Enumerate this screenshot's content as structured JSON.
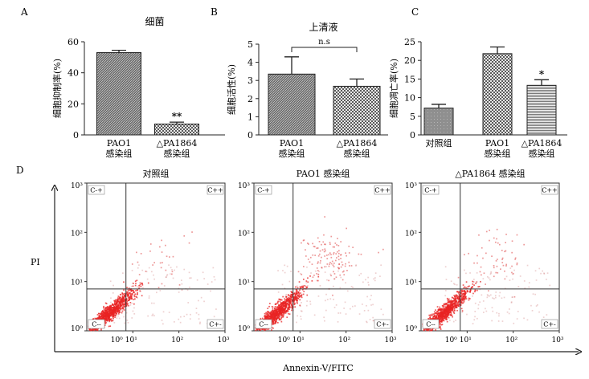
{
  "chart_data": [
    {
      "id": "A",
      "type": "bar",
      "panel_label": "A",
      "title": "细菌",
      "ylabel": "细胞抑制率(%)",
      "ylim": [
        0,
        60
      ],
      "yticks": [
        0,
        20,
        40,
        60
      ],
      "categories": [
        [
          "PAO1",
          "感染组"
        ],
        [
          "△PA1864",
          "感染组"
        ]
      ],
      "values": [
        53,
        7
      ],
      "errors": [
        1.5,
        1.2
      ],
      "patterns": [
        "hatch-dark",
        "check"
      ],
      "annotations": [
        {
          "bar": 1,
          "text": "**"
        }
      ],
      "grid": false
    },
    {
      "id": "B",
      "type": "bar",
      "panel_label": "B",
      "title": "上清液",
      "ylabel": "细胞活性(%)",
      "ylim": [
        0,
        5
      ],
      "yticks": [
        0,
        1,
        2,
        3,
        4,
        5
      ],
      "categories": [
        [
          "PAO1",
          "感染组"
        ],
        [
          "△PA1864",
          "感染组"
        ]
      ],
      "values": [
        3.35,
        2.68
      ],
      "errors": [
        0.95,
        0.4
      ],
      "patterns": [
        "hatch-dark",
        "check"
      ],
      "bracket": {
        "from": 0,
        "to": 1,
        "text": "n.s"
      },
      "grid": false
    },
    {
      "id": "C",
      "type": "bar",
      "panel_label": "C",
      "title": "",
      "ylabel": "细胞凋亡率(%)",
      "ylim": [
        0,
        25
      ],
      "yticks": [
        0,
        5,
        10,
        15,
        20,
        25
      ],
      "categories": [
        [
          "对照组"
        ],
        [
          "PAO1",
          "感染组"
        ],
        [
          "△PA1864",
          "感染组"
        ]
      ],
      "values": [
        7.2,
        21.8,
        13.3
      ],
      "errors": [
        1.0,
        1.8,
        1.5
      ],
      "patterns": [
        "gray",
        "check",
        "hlines"
      ],
      "annotations": [
        {
          "bar": 2,
          "text": "*"
        }
      ],
      "grid": false
    },
    {
      "id": "D",
      "type": "scatter",
      "panel_label": "D",
      "xlabel": "Annexin-V/FITC",
      "ylabel": "PI",
      "scale": "log",
      "ticks": [
        "10⁰",
        "10¹",
        "10²",
        "10³"
      ],
      "gate": {
        "x": 0.85,
        "y": 0.85
      },
      "quadrant_labels": {
        "ul": "C-+",
        "ur": "C++",
        "ll": "C--",
        "lr": "C+-"
      },
      "plots": [
        {
          "title": "对照组",
          "seed": 11,
          "late_fraction": 0.02
        },
        {
          "title": "PAO1 感染组",
          "seed": 23,
          "late_fraction": 0.09
        },
        {
          "title": "△PA1864 感染组",
          "seed": 37,
          "late_fraction": 0.05
        }
      ]
    }
  ]
}
